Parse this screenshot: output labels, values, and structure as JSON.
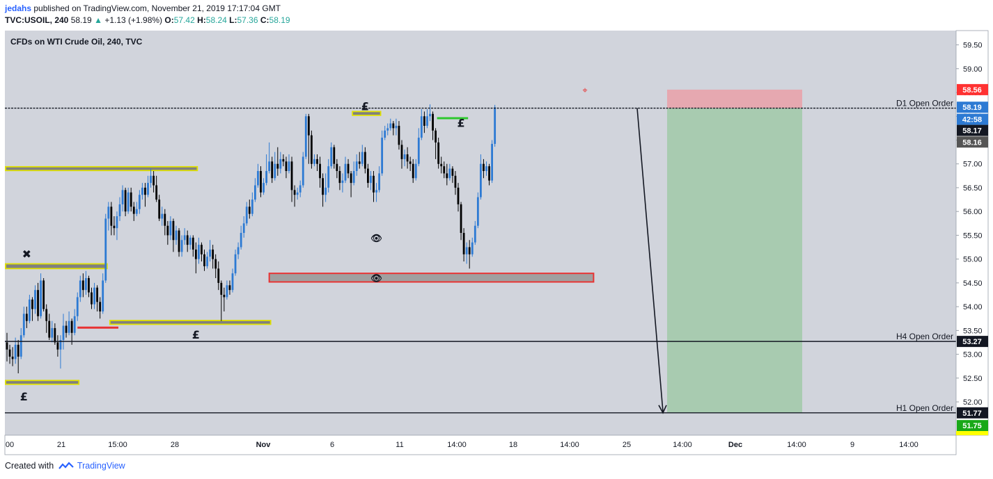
{
  "header": {
    "author": "jedahs",
    "published": "published on TradingView.com, November 21, 2019 17:17:04 GMT",
    "symbol": "TVC:USOIL, 240",
    "last": "58.19",
    "change_arrow": "▲",
    "change": "+1.13 (+1.98%)",
    "o_label": "O:",
    "o_value": "57.42",
    "h_label": "H:",
    "h_value": "58.24",
    "l_label": "L:",
    "l_value": "57.36",
    "c_label": "C:",
    "c_value": "58.19"
  },
  "footer": {
    "created_with": "Created with",
    "brand": "TradingView"
  },
  "colors": {
    "background": "#d1d4dc",
    "bull": "#2d7ad3",
    "bear": "#000000",
    "zone_border": "#dfe000",
    "zone_fill": "#808080",
    "stop_zone": "#e6a8b0",
    "target_zone": "#a8cbb0",
    "red_line": "#e83232",
    "green_line": "#2ec82e"
  },
  "chart_data": {
    "type": "candlestick",
    "title": "CFDs on WTI Crude Oil, 240, TVC",
    "timeframe": "240",
    "ylim": [
      51.3,
      59.8
    ],
    "y_ticks": [
      "59.50",
      "59.00",
      "58.50",
      "58.00",
      "57.50",
      "57.00",
      "56.50",
      "56.00",
      "55.50",
      "55.00",
      "54.50",
      "54.00",
      "53.50",
      "53.00",
      "52.50",
      "52.00"
    ],
    "x_ticks": [
      "00",
      "21",
      "15:00",
      "28",
      "Nov",
      "6",
      "11",
      "14:00",
      "18",
      "14:00",
      "25",
      "14:00",
      "Dec",
      "14:00",
      "9",
      "14:00"
    ],
    "bold_x_ticks": [
      "Nov",
      "Dec"
    ],
    "price_labels": [
      {
        "text": "58.56",
        "value": 58.56,
        "bg": "#ff3232",
        "fg": "#ffffff"
      },
      {
        "text": "58.19",
        "value": 58.19,
        "bg": "#2d7ad3",
        "fg": "#ffffff"
      },
      {
        "text": "42:58",
        "value": 58.17,
        "bg": "#2d7ad3",
        "fg": "#ffffff",
        "offset": 1
      },
      {
        "text": "58.17",
        "value": 58.17,
        "bg": "#131722",
        "fg": "#ffffff",
        "offset": 2
      },
      {
        "text": "58.16",
        "value": 58.16,
        "bg": "#555555",
        "fg": "#ffffff",
        "offset": 3
      },
      {
        "text": "53.27",
        "value": 53.27,
        "bg": "#131722",
        "fg": "#ffffff"
      },
      {
        "text": "51.77",
        "value": 51.77,
        "bg": "#131722",
        "fg": "#ffffff"
      },
      {
        "text": "51.75",
        "value": 51.75,
        "bg": "#18a818",
        "fg": "#ffffff",
        "offset": 1
      }
    ],
    "horizontal_lines": [
      {
        "label": "D1 Open Order",
        "value": 58.17
      },
      {
        "label": "H4 Open Order",
        "value": 53.27
      },
      {
        "label": "H1 Open Order",
        "value": 51.77
      }
    ],
    "position": {
      "entry": 58.17,
      "stop": 58.56,
      "target": 51.77
    },
    "zones": [
      {
        "name": "supply-1",
        "top": 56.94,
        "bottom": 56.86,
        "from": 0,
        "to": 67
      },
      {
        "name": "supply-2",
        "top": 54.9,
        "bottom": 54.8,
        "from": 0,
        "to": 35
      },
      {
        "name": "demand-1",
        "top": 53.71,
        "bottom": 53.63,
        "from": 37,
        "to": 93
      },
      {
        "name": "demand-2",
        "top": 52.45,
        "bottom": 52.37,
        "from": 0,
        "to": 25
      },
      {
        "name": "peak-zone",
        "top": 58.1,
        "bottom": 58.02,
        "from": 123,
        "to": 132
      }
    ],
    "key_zone": {
      "top": 54.7,
      "bottom": 54.52,
      "from": 93,
      "to": 208
    },
    "markers": [
      {
        "symbol": "✖",
        "x": 7,
        "y": 55.1
      },
      {
        "symbol": "£",
        "x": 6,
        "y": 52.1
      },
      {
        "symbol": "£",
        "x": 67,
        "y": 53.4
      },
      {
        "symbol": "£",
        "x": 127,
        "y": 58.2
      },
      {
        "symbol": "£",
        "x": 161,
        "y": 57.85
      },
      {
        "symbol": "👁",
        "x": 131,
        "y": 55.45
      },
      {
        "symbol": "👁",
        "x": 131,
        "y": 54.61
      }
    ],
    "projection_arrow": {
      "from": {
        "x": 228,
        "y": 58.17
      },
      "to": {
        "x": 238,
        "y": 51.77
      }
    },
    "candles": [
      [
        53.25,
        53.1,
        52.85,
        53.45
      ],
      [
        53.1,
        52.95,
        52.8,
        53.2
      ],
      [
        52.95,
        52.9,
        52.75,
        53.15
      ],
      [
        52.9,
        53.2,
        52.8,
        53.35
      ],
      [
        53.2,
        52.95,
        52.6,
        53.3
      ],
      [
        52.95,
        53.4,
        52.9,
        53.55
      ],
      [
        53.4,
        53.85,
        53.35,
        54.0
      ],
      [
        53.85,
        53.7,
        53.55,
        54.0
      ],
      [
        53.7,
        54.15,
        53.65,
        54.25
      ],
      [
        54.15,
        53.95,
        53.7,
        54.2
      ],
      [
        53.95,
        54.35,
        53.85,
        54.45
      ],
      [
        54.35,
        53.8,
        53.7,
        54.5
      ],
      [
        53.8,
        54.55,
        53.75,
        54.7
      ],
      [
        54.55,
        53.95,
        53.9,
        54.6
      ],
      [
        53.95,
        53.7,
        53.45,
        54.05
      ],
      [
        53.7,
        53.35,
        53.3,
        53.85
      ],
      [
        53.35,
        53.55,
        53.25,
        53.7
      ],
      [
        53.55,
        53.25,
        53.2,
        53.65
      ],
      [
        53.25,
        53.1,
        52.95,
        53.4
      ],
      [
        53.1,
        53.3,
        52.7,
        53.4
      ],
      [
        53.3,
        53.6,
        53.1,
        53.85
      ],
      [
        53.6,
        53.45,
        53.35,
        53.7
      ],
      [
        53.45,
        53.7,
        53.4,
        53.9
      ],
      [
        53.7,
        53.45,
        53.2,
        53.75
      ],
      [
        53.45,
        53.8,
        53.4,
        53.95
      ],
      [
        53.8,
        54.2,
        53.7,
        54.3
      ],
      [
        54.2,
        54.55,
        54.1,
        54.65
      ],
      [
        54.55,
        54.35,
        54.2,
        54.7
      ],
      [
        54.35,
        54.6,
        54.25,
        54.75
      ],
      [
        54.6,
        54.3,
        54.2,
        54.65
      ],
      [
        54.3,
        54.05,
        53.95,
        54.4
      ],
      [
        54.05,
        54.4,
        53.95,
        54.5
      ],
      [
        54.4,
        54.1,
        53.9,
        54.45
      ],
      [
        54.1,
        53.9,
        53.75,
        54.2
      ],
      [
        53.9,
        54.55,
        53.85,
        54.7
      ],
      [
        54.55,
        55.85,
        54.5,
        55.95
      ],
      [
        55.85,
        56.1,
        55.6,
        56.2
      ],
      [
        56.1,
        55.7,
        55.5,
        56.2
      ],
      [
        55.7,
        55.65,
        55.5,
        55.9
      ],
      [
        55.65,
        55.9,
        55.4,
        56.0
      ],
      [
        55.9,
        56.15,
        55.8,
        56.3
      ],
      [
        56.15,
        56.45,
        56.0,
        56.55
      ],
      [
        56.45,
        56.0,
        55.9,
        56.5
      ],
      [
        56.0,
        56.4,
        55.95,
        56.5
      ],
      [
        56.4,
        56.1,
        56.0,
        56.5
      ],
      [
        56.1,
        55.95,
        55.8,
        56.2
      ],
      [
        55.95,
        56.05,
        55.9,
        56.2
      ],
      [
        56.05,
        56.35,
        55.95,
        56.45
      ],
      [
        56.35,
        56.5,
        56.25,
        56.6
      ],
      [
        56.5,
        56.35,
        56.1,
        56.6
      ],
      [
        56.35,
        56.6,
        56.3,
        56.75
      ],
      [
        56.6,
        56.75,
        56.5,
        56.9
      ],
      [
        56.75,
        56.55,
        56.4,
        56.85
      ],
      [
        56.55,
        56.25,
        56.2,
        56.75
      ],
      [
        56.25,
        55.85,
        55.8,
        56.35
      ],
      [
        55.85,
        55.95,
        55.7,
        56.1
      ],
      [
        55.95,
        55.7,
        55.5,
        56.05
      ],
      [
        55.7,
        55.5,
        55.3,
        55.8
      ],
      [
        55.5,
        55.8,
        55.4,
        55.9
      ],
      [
        55.8,
        55.4,
        55.15,
        55.85
      ],
      [
        55.4,
        55.6,
        55.3,
        55.7
      ],
      [
        55.6,
        55.15,
        55.05,
        55.65
      ],
      [
        55.15,
        55.4,
        55.05,
        55.5
      ],
      [
        55.4,
        55.5,
        55.3,
        55.65
      ],
      [
        55.5,
        55.3,
        55.15,
        55.6
      ],
      [
        55.3,
        55.45,
        55.2,
        55.5
      ],
      [
        55.45,
        55.2,
        55.05,
        55.5
      ],
      [
        55.2,
        55.0,
        54.7,
        55.35
      ],
      [
        55.0,
        55.3,
        54.9,
        55.45
      ],
      [
        55.3,
        55.1,
        54.95,
        55.35
      ],
      [
        55.1,
        54.85,
        54.75,
        55.2
      ],
      [
        54.85,
        55.05,
        54.8,
        55.15
      ],
      [
        55.05,
        55.2,
        54.95,
        55.4
      ],
      [
        55.2,
        55.0,
        54.8,
        55.3
      ],
      [
        55.0,
        54.8,
        54.6,
        55.1
      ],
      [
        54.8,
        54.5,
        54.35,
        54.95
      ],
      [
        54.5,
        54.25,
        53.7,
        54.55
      ],
      [
        54.25,
        54.2,
        53.9,
        54.4
      ],
      [
        54.2,
        54.45,
        54.15,
        54.55
      ],
      [
        54.45,
        54.35,
        54.25,
        54.55
      ],
      [
        54.35,
        54.7,
        54.3,
        54.8
      ],
      [
        54.7,
        55.1,
        54.65,
        55.2
      ],
      [
        55.1,
        55.25,
        55.0,
        55.35
      ],
      [
        55.25,
        55.55,
        55.2,
        55.7
      ],
      [
        55.55,
        55.75,
        55.45,
        55.9
      ],
      [
        55.75,
        56.1,
        55.7,
        56.2
      ],
      [
        56.1,
        55.95,
        55.85,
        56.25
      ],
      [
        55.95,
        56.25,
        55.9,
        56.4
      ],
      [
        56.25,
        56.55,
        56.2,
        56.7
      ],
      [
        56.55,
        56.85,
        56.5,
        57.0
      ],
      [
        56.85,
        56.4,
        56.3,
        56.95
      ],
      [
        56.4,
        56.6,
        56.35,
        56.7
      ],
      [
        56.6,
        56.85,
        56.55,
        57.2
      ],
      [
        56.85,
        57.05,
        56.8,
        57.45
      ],
      [
        57.05,
        56.7,
        56.6,
        57.15
      ],
      [
        56.7,
        57.0,
        56.65,
        57.25
      ],
      [
        57.0,
        56.9,
        56.75,
        57.35
      ],
      [
        56.9,
        57.1,
        56.8,
        57.25
      ],
      [
        57.1,
        57.05,
        56.95,
        57.2
      ],
      [
        57.05,
        56.85,
        56.7,
        57.15
      ],
      [
        56.85,
        57.05,
        56.8,
        57.2
      ],
      [
        57.05,
        56.45,
        56.2,
        57.15
      ],
      [
        56.45,
        56.35,
        56.1,
        56.55
      ],
      [
        56.35,
        56.4,
        56.25,
        56.5
      ],
      [
        56.4,
        56.55,
        56.3,
        56.65
      ],
      [
        56.55,
        57.15,
        56.5,
        57.25
      ],
      [
        57.15,
        58.0,
        57.1,
        58.05
      ],
      [
        58.0,
        57.6,
        57.0,
        58.05
      ],
      [
        57.6,
        57.0,
        56.9,
        57.7
      ],
      [
        57.0,
        57.1,
        56.95,
        57.2
      ],
      [
        57.1,
        57.0,
        56.85,
        57.2
      ],
      [
        57.0,
        56.7,
        56.5,
        57.15
      ],
      [
        56.7,
        56.35,
        56.1,
        56.8
      ],
      [
        56.35,
        56.5,
        56.2,
        56.8
      ],
      [
        56.5,
        56.95,
        56.4,
        57.1
      ],
      [
        56.95,
        57.35,
        56.9,
        57.45
      ],
      [
        57.35,
        57.0,
        56.9,
        57.4
      ],
      [
        57.0,
        56.85,
        56.7,
        57.1
      ],
      [
        56.85,
        56.6,
        56.45,
        56.95
      ],
      [
        56.6,
        56.65,
        56.4,
        56.8
      ],
      [
        56.65,
        57.0,
        56.6,
        57.15
      ],
      [
        57.0,
        56.8,
        56.7,
        57.1
      ],
      [
        56.8,
        56.6,
        56.3,
        56.85
      ],
      [
        56.6,
        56.85,
        56.55,
        57.05
      ],
      [
        56.85,
        57.05,
        56.75,
        57.2
      ],
      [
        57.05,
        57.0,
        56.9,
        57.25
      ],
      [
        57.0,
        57.25,
        56.95,
        57.4
      ],
      [
        57.25,
        56.9,
        56.8,
        57.35
      ],
      [
        56.9,
        56.6,
        56.5,
        57.0
      ],
      [
        56.6,
        56.75,
        56.45,
        56.85
      ],
      [
        56.75,
        56.4,
        56.2,
        56.85
      ],
      [
        56.4,
        56.45,
        56.2,
        56.6
      ],
      [
        56.45,
        56.8,
        56.4,
        56.95
      ],
      [
        56.8,
        57.55,
        56.75,
        57.7
      ],
      [
        57.55,
        57.7,
        57.5,
        57.8
      ],
      [
        57.7,
        57.75,
        57.6,
        57.85
      ],
      [
        57.75,
        57.85,
        57.7,
        57.95
      ],
      [
        57.85,
        57.75,
        57.6,
        57.9
      ],
      [
        57.75,
        57.8,
        57.6,
        57.95
      ],
      [
        57.8,
        57.4,
        57.3,
        57.9
      ],
      [
        57.4,
        57.1,
        56.9,
        57.5
      ],
      [
        57.1,
        57.2,
        56.95,
        57.3
      ],
      [
        57.2,
        57.05,
        56.9,
        57.35
      ],
      [
        57.05,
        57.0,
        56.85,
        57.15
      ],
      [
        57.0,
        56.7,
        56.6,
        57.1
      ],
      [
        56.7,
        57.0,
        56.65,
        57.1
      ],
      [
        57.0,
        57.55,
        56.95,
        57.75
      ],
      [
        57.55,
        58.0,
        57.5,
        58.15
      ],
      [
        58.0,
        57.8,
        57.65,
        58.1
      ],
      [
        57.8,
        58.0,
        57.75,
        58.15
      ],
      [
        58.0,
        58.05,
        57.9,
        58.25
      ],
      [
        58.05,
        57.7,
        57.5,
        58.1
      ],
      [
        57.7,
        57.45,
        57.1,
        57.75
      ],
      [
        57.45,
        57.0,
        56.9,
        57.55
      ],
      [
        57.0,
        56.95,
        56.8,
        57.15
      ],
      [
        56.95,
        56.8,
        56.7,
        57.05
      ],
      [
        56.8,
        56.7,
        56.55,
        57.0
      ],
      [
        56.7,
        56.9,
        56.65,
        57.0
      ],
      [
        56.9,
        56.75,
        56.6,
        56.95
      ],
      [
        56.75,
        56.5,
        56.35,
        56.85
      ],
      [
        56.5,
        56.15,
        56.0,
        56.6
      ],
      [
        56.15,
        55.55,
        55.4,
        56.2
      ],
      [
        55.55,
        55.1,
        54.95,
        55.65
      ],
      [
        55.1,
        55.25,
        54.9,
        55.35
      ],
      [
        55.25,
        55.1,
        54.8,
        55.4
      ],
      [
        55.1,
        55.35,
        55.05,
        55.45
      ],
      [
        55.35,
        55.7,
        55.3,
        55.8
      ],
      [
        55.7,
        56.3,
        55.65,
        56.4
      ],
      [
        56.3,
        57.0,
        56.25,
        57.2
      ],
      [
        57.0,
        56.85,
        56.7,
        57.1
      ],
      [
        56.85,
        56.95,
        56.75,
        57.05
      ],
      [
        56.95,
        56.65,
        56.55,
        57.0
      ],
      [
        56.65,
        57.42,
        56.6,
        57.5
      ],
      [
        57.42,
        58.19,
        57.36,
        58.24
      ]
    ]
  }
}
